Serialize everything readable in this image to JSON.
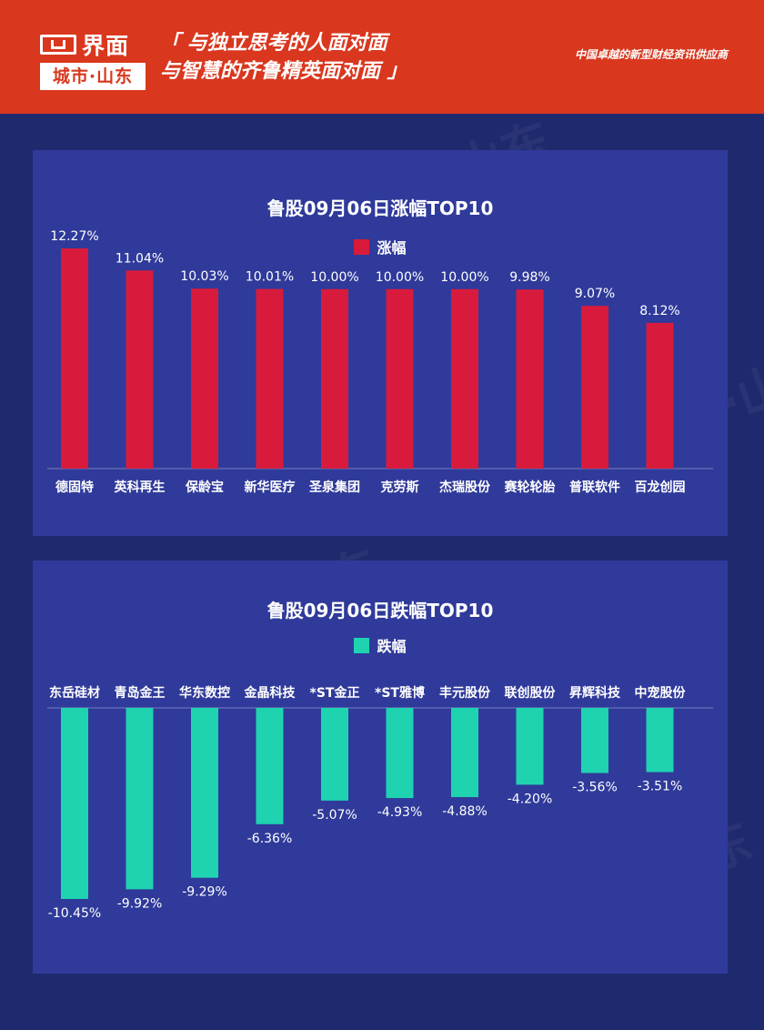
{
  "header": {
    "logo_name": "界面",
    "logo_city": "城市·山东",
    "slogan_line1": "「 与独立思考的人面对面",
    "slogan_line2": "与智慧的齐鲁精英面对面 」",
    "tagline": "中国卓越的新型财经资讯供应商"
  },
  "watermark": "界面 城市·山东",
  "colors": {
    "header_bg": "#d9371e",
    "page_bg": "#1f2a6e",
    "panel_bg": "#2f3a9a",
    "gain": "#d81b3c",
    "loss": "#1fd3b0"
  },
  "chart_data": [
    {
      "type": "bar",
      "title": "鲁股09月06日涨幅TOP10",
      "categories": [
        "德固特",
        "英科再生",
        "保龄宝",
        "新华医疗",
        "圣泉集团",
        "克劳斯",
        "杰瑞股份",
        "赛轮轮胎",
        "普联软件",
        "百龙创园"
      ],
      "series": [
        {
          "name": "涨幅",
          "values": [
            12.27,
            11.04,
            10.03,
            10.01,
            10.0,
            10.0,
            10.0,
            9.98,
            9.07,
            8.12
          ]
        }
      ],
      "value_labels": [
        "12.27%",
        "11.04%",
        "10.03%",
        "10.01%",
        "10.00%",
        "10.00%",
        "10.00%",
        "9.98%",
        "9.07%",
        "8.12%"
      ],
      "unit": "%",
      "legend": "top-center",
      "grid": false
    },
    {
      "type": "bar",
      "title": "鲁股09月06日跌幅TOP10",
      "categories": [
        "东岳硅材",
        "青岛金王",
        "华东数控",
        "金晶科技",
        "*ST金正",
        "*ST雅博",
        "丰元股份",
        "联创股份",
        "昇辉科技",
        "中宠股份"
      ],
      "series": [
        {
          "name": "跌幅",
          "values": [
            -10.45,
            -9.92,
            -9.29,
            -6.36,
            -5.07,
            -4.93,
            -4.88,
            -4.2,
            -3.56,
            -3.51
          ]
        }
      ],
      "value_labels": [
        "-10.45%",
        "-9.92%",
        "-9.29%",
        "-6.36%",
        "-5.07%",
        "-4.93%",
        "-4.88%",
        "-4.20%",
        "-3.56%",
        "-3.51%"
      ],
      "unit": "%",
      "legend": "top-center",
      "grid": false
    }
  ]
}
